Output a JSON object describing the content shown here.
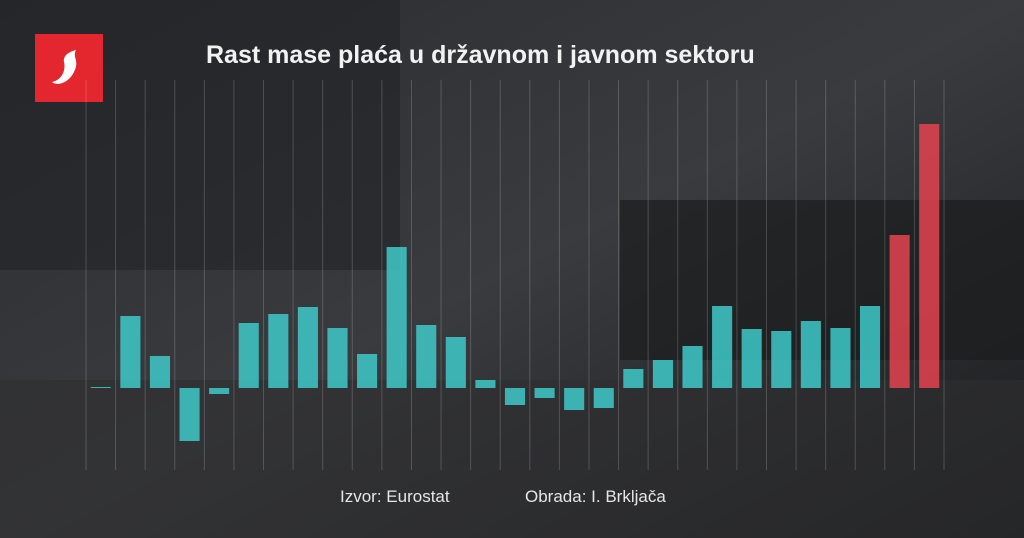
{
  "chart_data": {
    "type": "bar",
    "title": "Rast mase plaća u državnom i javnom sektoru",
    "values": [
      1,
      72,
      32,
      -53,
      -6,
      65,
      74,
      81,
      60,
      34,
      141,
      63,
      51,
      8,
      -17,
      -10,
      -22,
      -20,
      19,
      28,
      42,
      82,
      59,
      57,
      67,
      60,
      82,
      153,
      264
    ],
    "colors": [
      "#3ec9c9",
      "#3ec9c9",
      "#3ec9c9",
      "#3ec9c9",
      "#3ec9c9",
      "#3ec9c9",
      "#3ec9c9",
      "#3ec9c9",
      "#3ec9c9",
      "#3ec9c9",
      "#3ec9c9",
      "#3ec9c9",
      "#3ec9c9",
      "#3ec9c9",
      "#3ec9c9",
      "#3ec9c9",
      "#3ec9c9",
      "#3ec9c9",
      "#3ec9c9",
      "#3ec9c9",
      "#3ec9c9",
      "#3ec9c9",
      "#3ec9c9",
      "#3ec9c9",
      "#3ec9c9",
      "#3ec9c9",
      "#3ec9c9",
      "#e3434f",
      "#e3434f"
    ],
    "ylim": [
      -82,
      308
    ],
    "source": "Izvor: Eurostat",
    "credit": "Obrada: I. Brkljača"
  }
}
